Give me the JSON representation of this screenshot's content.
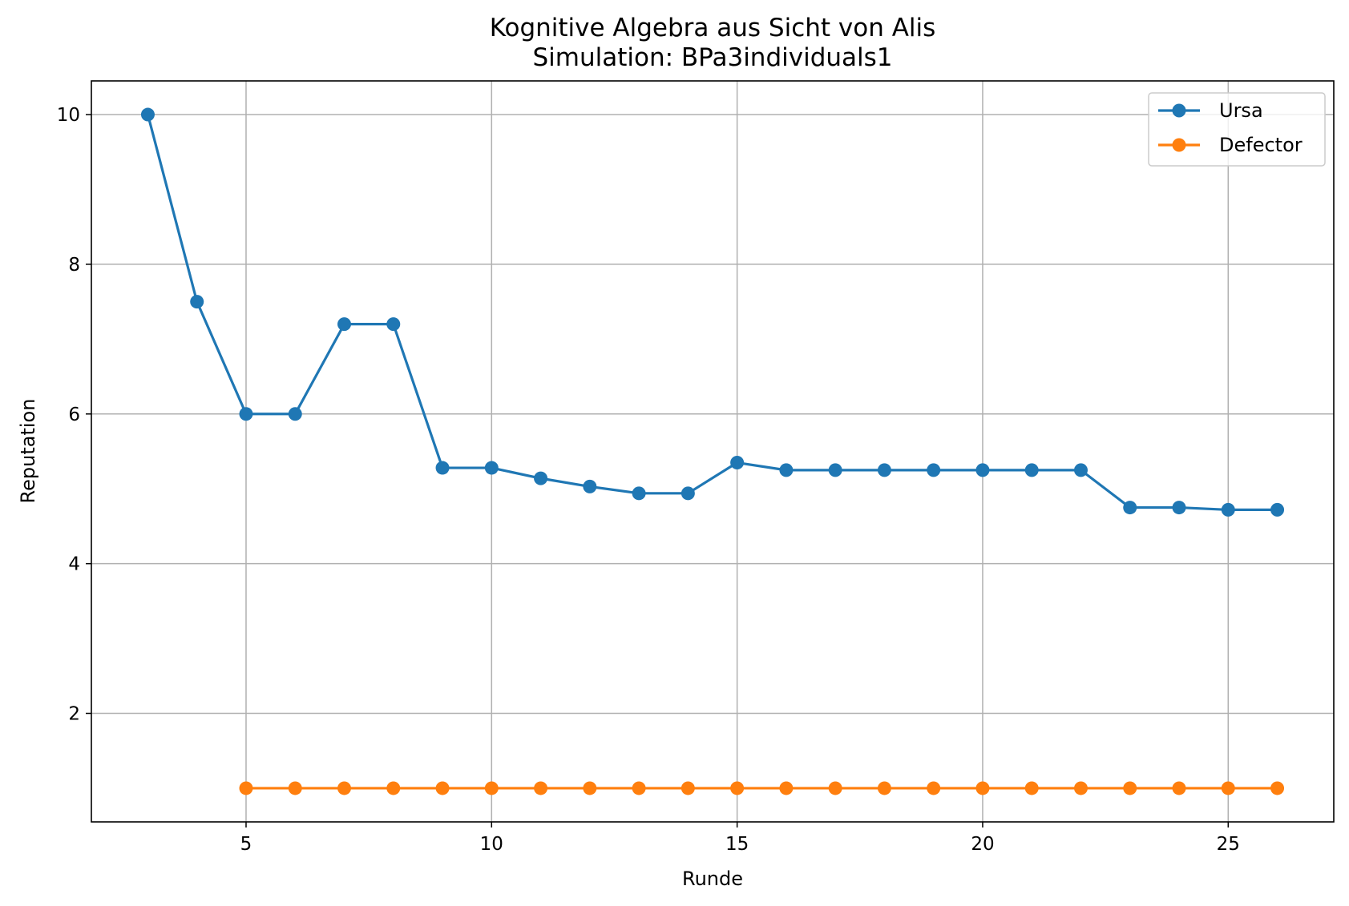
{
  "chart_data": {
    "type": "line",
    "title": "Kognitive Algebra aus Sicht von Alis",
    "subtitle": "Simulation: BPa3individuals1",
    "xlabel": "Runde",
    "ylabel": "Reputation",
    "xlim": [
      1.85,
      27.15
    ],
    "ylim": [
      0.55,
      10.45
    ],
    "xticks": [
      5,
      10,
      15,
      20,
      25
    ],
    "yticks": [
      2,
      4,
      6,
      8,
      10
    ],
    "grid": true,
    "legend_position": "top-right",
    "series": [
      {
        "name": "Ursa",
        "color": "#1f77b4",
        "x": [
          3,
          4,
          5,
          6,
          7,
          8,
          9,
          10,
          11,
          12,
          13,
          14,
          15,
          16,
          17,
          18,
          19,
          20,
          21,
          22,
          23,
          24,
          25,
          26
        ],
        "y": [
          10.0,
          7.5,
          6.0,
          6.0,
          7.2,
          7.2,
          5.28,
          5.28,
          5.14,
          5.03,
          4.94,
          4.94,
          5.35,
          5.25,
          5.25,
          5.25,
          5.25,
          5.25,
          5.25,
          5.25,
          4.75,
          4.75,
          4.72,
          4.72
        ]
      },
      {
        "name": "Defector",
        "color": "#ff7f0e",
        "x": [
          5,
          6,
          7,
          8,
          9,
          10,
          11,
          12,
          13,
          14,
          15,
          16,
          17,
          18,
          19,
          20,
          21,
          22,
          23,
          24,
          25,
          26
        ],
        "y": [
          1,
          1,
          1,
          1,
          1,
          1,
          1,
          1,
          1,
          1,
          1,
          1,
          1,
          1,
          1,
          1,
          1,
          1,
          1,
          1,
          1,
          1
        ]
      }
    ]
  }
}
